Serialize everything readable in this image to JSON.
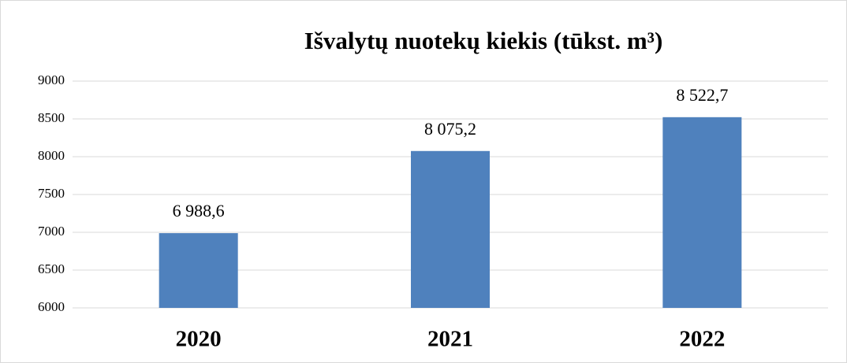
{
  "chart_data": {
    "type": "bar",
    "title": "Išvalytų nuotekų kiekis (tūkst. m³)",
    "categories": [
      "2020",
      "2021",
      "2022"
    ],
    "values": [
      6988.6,
      8075.2,
      8522.7
    ],
    "value_labels": [
      "6 988,6",
      "8 075,2",
      "8 522,7"
    ],
    "color": "#4f81bd",
    "ylim": [
      6000,
      9000
    ],
    "yticks": [
      6000,
      6500,
      7000,
      7500,
      8000,
      8500,
      9000
    ],
    "grid": true
  }
}
